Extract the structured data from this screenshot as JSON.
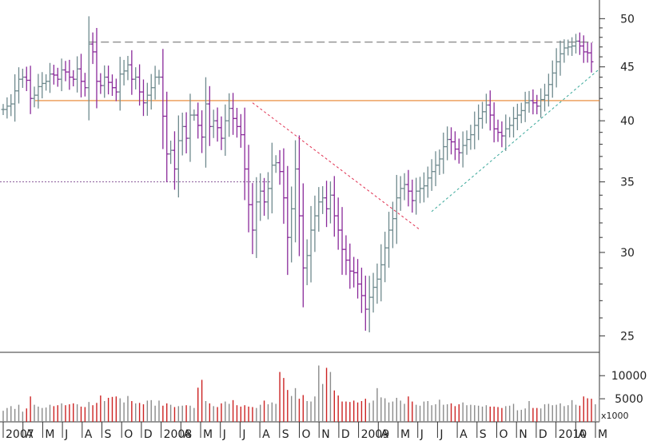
{
  "chart_data": {
    "type": "ohlc",
    "price_axis": {
      "scale": "log",
      "range": [
        24.5,
        51
      ],
      "ticks": [
        "25",
        "30",
        "35",
        "40",
        "45",
        "50"
      ]
    },
    "volume_axis": {
      "ticks": [
        "10000",
        "5000"
      ],
      "unit_label": "x1000"
    },
    "x_axis": {
      "labels": [
        "2007",
        "A",
        "M",
        "J",
        "A",
        "S",
        "O",
        "D",
        "2008",
        "A",
        "M",
        "J",
        "J",
        "A",
        "S",
        "O",
        "N",
        "D",
        "2009",
        "A",
        "M",
        "J",
        "J",
        "A",
        "S",
        "O",
        "N",
        "D",
        "2010",
        "A",
        "M"
      ]
    },
    "reference_lines": {
      "resistance_dashed": 47.5,
      "support_orange": 41.8,
      "dotted_level": 35.0
    },
    "trendlines": {
      "downtrend_red": {
        "from": 41.6,
        "to": 31.5
      },
      "uptrend_teal": {
        "from": 32.8,
        "to": 44.8
      }
    },
    "prices": [
      41,
      41.3,
      41.5,
      42.7,
      43.8,
      44,
      43.7,
      42,
      42.3,
      43.1,
      43.4,
      43.6,
      44.3,
      44.2,
      43.8,
      44.7,
      44.5,
      44,
      43.8,
      44.8,
      43.6,
      43,
      47.3,
      46.5,
      43.6,
      43.2,
      44,
      43.5,
      43,
      42.6,
      44.3,
      44.6,
      45.2,
      43.8,
      44,
      42.6,
      41.6,
      42.3,
      43,
      44,
      44,
      40.4,
      37.2,
      37.5,
      36,
      38.3,
      39.5,
      38.5,
      40.5,
      40.5,
      39.6,
      38.6,
      41.5,
      39.5,
      40,
      39.4,
      38.5,
      40,
      41.1,
      40.2,
      39.5,
      38.8,
      36,
      33.3,
      31.5,
      33.5,
      34.3,
      33.5,
      34.5,
      36.3,
      36.5,
      35.8,
      33.8,
      31,
      33,
      36,
      32.5,
      29,
      29.8,
      31.5,
      32.5,
      33.5,
      33.8,
      33,
      34,
      32.5,
      31.5,
      30.2,
      29.5,
      28.8,
      28.7,
      28,
      27.3,
      26.5,
      27.2,
      27.8,
      28.3,
      29.2,
      30.3,
      31.5,
      32.3,
      33.8,
      34.5,
      34.8,
      34.3,
      33.6,
      34.3,
      34.5,
      34.7,
      35.3,
      35.8,
      36.3,
      36.8,
      37.8,
      38.4,
      38.2,
      37.6,
      37.3,
      37.9,
      38.4,
      38.8,
      39.6,
      40.2,
      40.8,
      41.4,
      40.5,
      39.3,
      39,
      38.7,
      39.3,
      39.6,
      40.2,
      40.5,
      40.9,
      41.6,
      41.8,
      41.6,
      41.3,
      41.9,
      42.3,
      43.3,
      44.4,
      45.5,
      46.3,
      46.9,
      47,
      47.1,
      47.6,
      47.1,
      46.5,
      46.4,
      45.5
    ],
    "volumes": [
      2400,
      3000,
      3400,
      2800,
      3700,
      2200,
      2900,
      5500,
      3700,
      3300,
      3000,
      3100,
      3700,
      3400,
      3600,
      4000,
      3600,
      3800,
      4000,
      3800,
      3300,
      3200,
      4300,
      3600,
      4100,
      5700,
      4500,
      5200,
      5400,
      5500,
      5100,
      4200,
      5600,
      4500,
      4000,
      4100,
      3800,
      4600,
      4700,
      3500,
      4600,
      3500,
      4000,
      3700,
      3200,
      3400,
      3500,
      3600,
      3500,
      3000,
      7400,
      9100,
      4500,
      4000,
      3400,
      3200,
      4000,
      4400,
      3900,
      4700,
      3600,
      3300,
      3600,
      3300,
      3200,
      3000,
      3700,
      4600,
      3800,
      4200,
      3900,
      10800,
      9500,
      6900,
      5600,
      7300,
      5000,
      5800,
      4500,
      4400,
      5500,
      12200,
      8200,
      11700,
      10800,
      6800,
      5700,
      4400,
      4400,
      4300,
      4600,
      4200,
      4500,
      5000,
      4100,
      4600,
      7300,
      5300,
      5100,
      4200,
      4400,
      5200,
      4600,
      3900,
      5500,
      4400,
      3700,
      3500,
      4400,
      4500,
      3600,
      3800,
      4800,
      3700,
      3800,
      4000,
      3400,
      3800,
      4200,
      3600,
      3700,
      3600,
      3500,
      3300,
      3600,
      3300,
      3300,
      3200,
      3000,
      3400,
      3500,
      3900,
      2500,
      2600,
      2900,
      4500,
      3000,
      3000,
      2900,
      3800,
      3900,
      3600,
      3700,
      4000,
      3400,
      3600,
      4700,
      3700,
      3500,
      5500,
      5100,
      5000,
      3800,
      5500
    ]
  }
}
